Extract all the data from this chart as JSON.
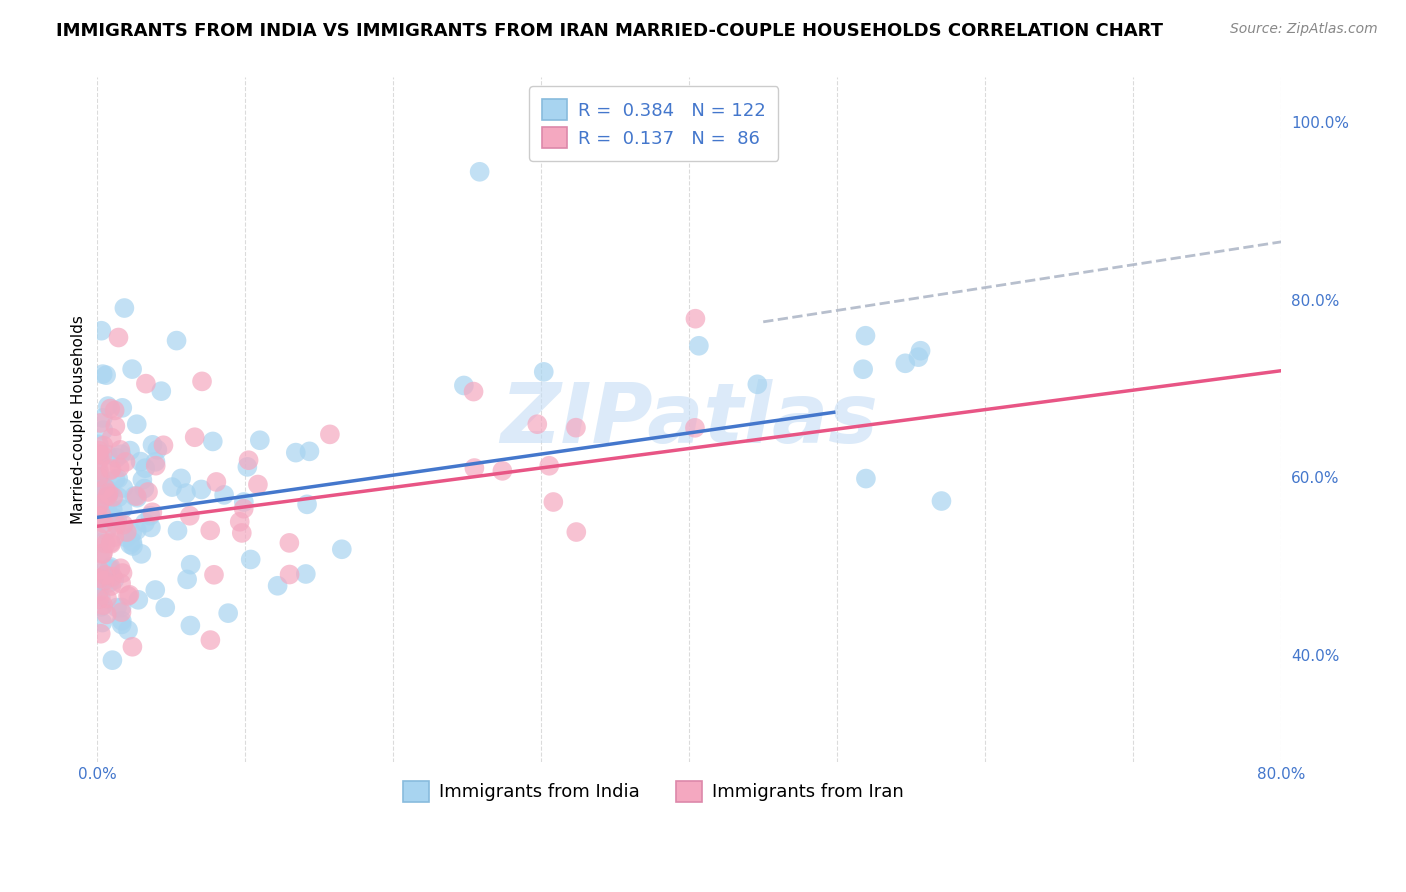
{
  "title": "IMMIGRANTS FROM INDIA VS IMMIGRANTS FROM IRAN MARRIED-COUPLE HOUSEHOLDS CORRELATION CHART",
  "source": "Source: ZipAtlas.com",
  "ylabel": "Married-couple Households",
  "india_R": 0.384,
  "india_N": 122,
  "iran_R": 0.137,
  "iran_N": 86,
  "india_color": "#a8d4f0",
  "iran_color": "#f4a8c0",
  "india_line_color": "#4477cc",
  "iran_line_color": "#e85585",
  "dash_line_color": "#b0b8c8",
  "watermark": "ZIPatlas",
  "xlim": [
    0.0,
    0.8
  ],
  "ylim": [
    0.28,
    1.05
  ],
  "right_yticks": [
    0.4,
    0.6,
    0.8,
    1.0
  ],
  "right_yticklabels": [
    "40.0%",
    "60.0%",
    "80.0%",
    "100.0%"
  ],
  "title_fontsize": 13,
  "source_fontsize": 10,
  "axis_label_fontsize": 11,
  "tick_fontsize": 11,
  "legend_fontsize": 13,
  "background_color": "#ffffff",
  "grid_color": "#cccccc",
  "watermark_color": "#c5ddf5",
  "watermark_fontsize": 60,
  "india_trendline": [
    0.0,
    0.8,
    0.555,
    0.745
  ],
  "iran_trendline": [
    0.0,
    0.8,
    0.545,
    0.72
  ],
  "dash_line": [
    0.45,
    0.8,
    0.775,
    0.865
  ]
}
